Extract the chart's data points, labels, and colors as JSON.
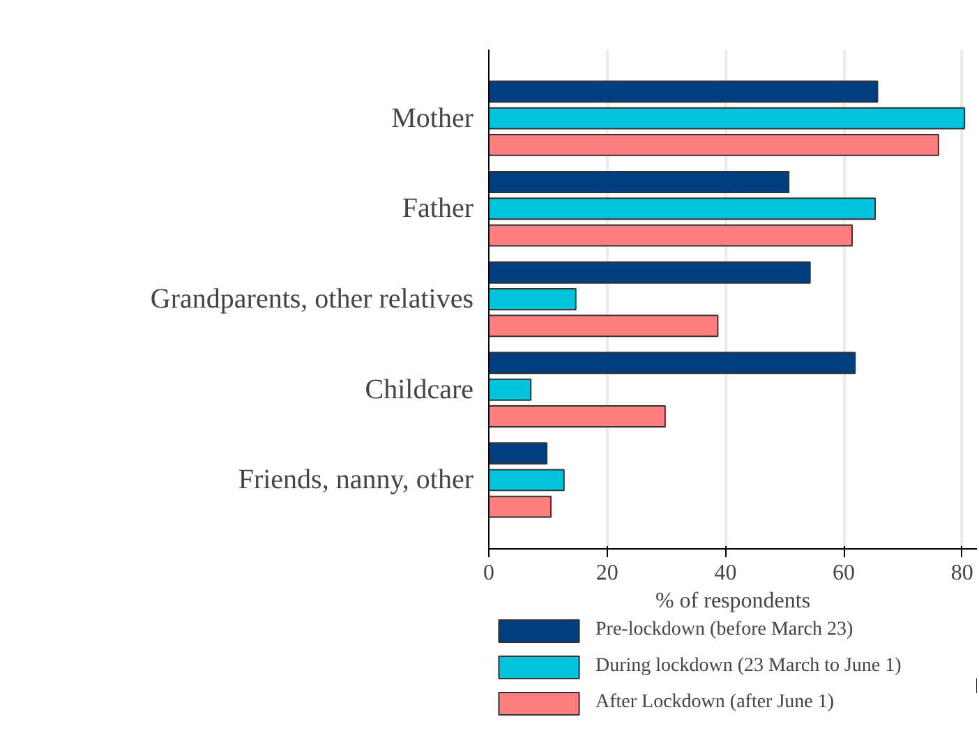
{
  "chart_data": {
    "type": "bar",
    "orientation": "horizontal",
    "categories": [
      "Mother",
      "Father",
      "Grandparents, other relatives",
      "Childcare",
      "Friends, nanny, other"
    ],
    "series": [
      {
        "name": "Pre-lockdown (before March 23)",
        "color": "#003f7f",
        "values": [
          65.7,
          50.7,
          54.3,
          61.9,
          9.8
        ]
      },
      {
        "name": "During lockdown (23 March to June 1)",
        "color": "#00c5dc",
        "values": [
          80.4,
          65.3,
          14.7,
          7.1,
          12.7
        ]
      },
      {
        "name": "After Lockdown (after June 1)",
        "color": "#ff7f7f",
        "values": [
          76.0,
          61.4,
          38.7,
          29.8,
          10.5
        ]
      }
    ],
    "xlabel": "% of respondents",
    "xlim": [
      0,
      82.5
    ],
    "xticks": [
      0,
      20,
      40,
      60,
      80
    ],
    "grid": "x",
    "legend": "bottom"
  }
}
